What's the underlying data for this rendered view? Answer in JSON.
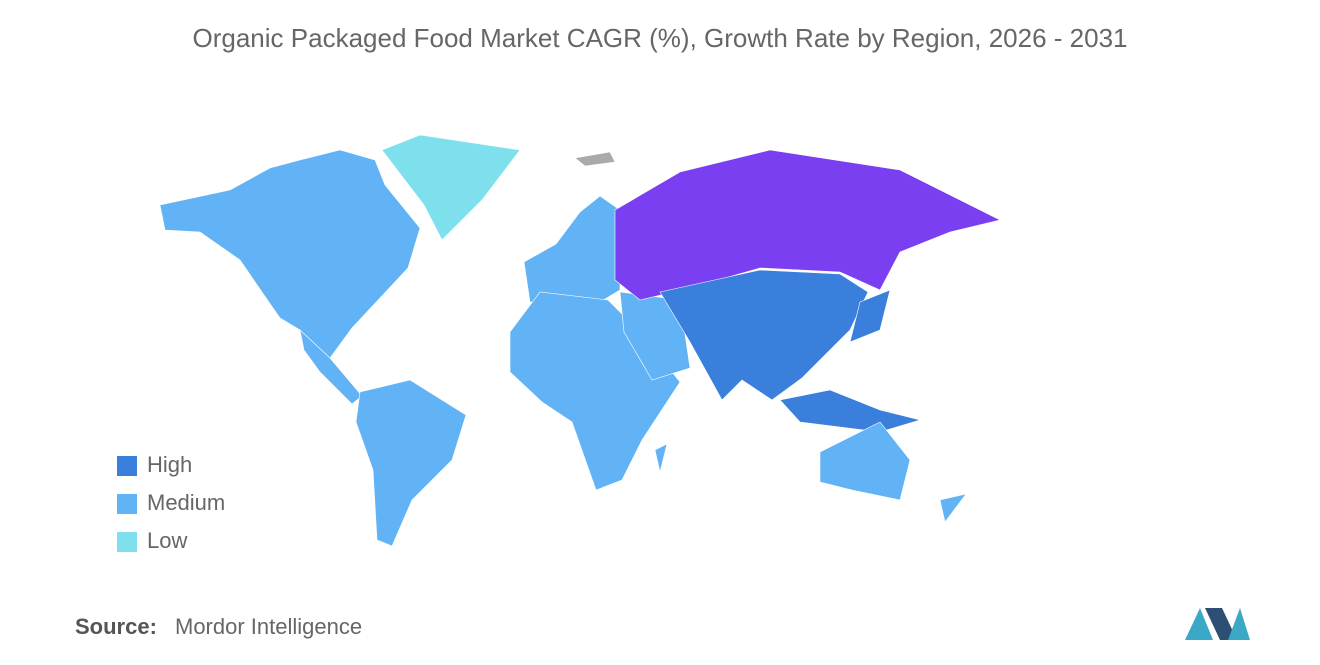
{
  "title": "Organic Packaged Food Market CAGR (%), Growth Rate by Region, 2026 - 2031",
  "legend": [
    {
      "label": "High",
      "color": "#3a7fdc"
    },
    {
      "label": "Medium",
      "color": "#62b3f5"
    },
    {
      "label": "Low",
      "color": "#7ee0ec"
    }
  ],
  "source": {
    "label": "Source:",
    "name": "Mordor Intelligence"
  }
}
